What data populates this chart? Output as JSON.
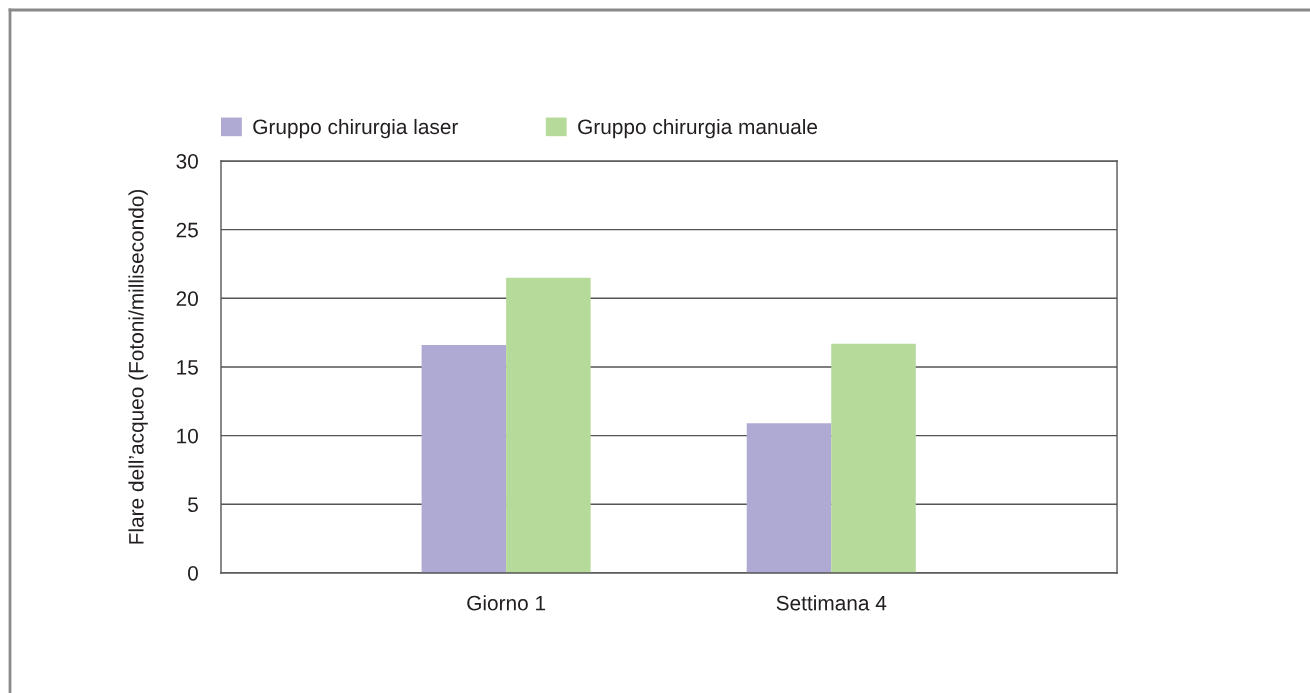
{
  "chart_data": {
    "type": "bar",
    "ylabel": "Flare dell’acqueo (Fotoni/millisecondo)",
    "categories": [
      "Giorno 1",
      "Settimana 4"
    ],
    "series": [
      {
        "name": "Gruppo chirurgia laser",
        "color": "#aeaad3",
        "values": [
          16.6,
          10.9
        ]
      },
      {
        "name": "Gruppo chirurgia manuale",
        "color": "#b5da9a",
        "values": [
          21.5,
          16.7
        ]
      }
    ],
    "ylim": [
      0,
      30
    ],
    "yticks": [
      0,
      5,
      10,
      15,
      20,
      25,
      30
    ],
    "grid": "y",
    "legend": "top left"
  }
}
